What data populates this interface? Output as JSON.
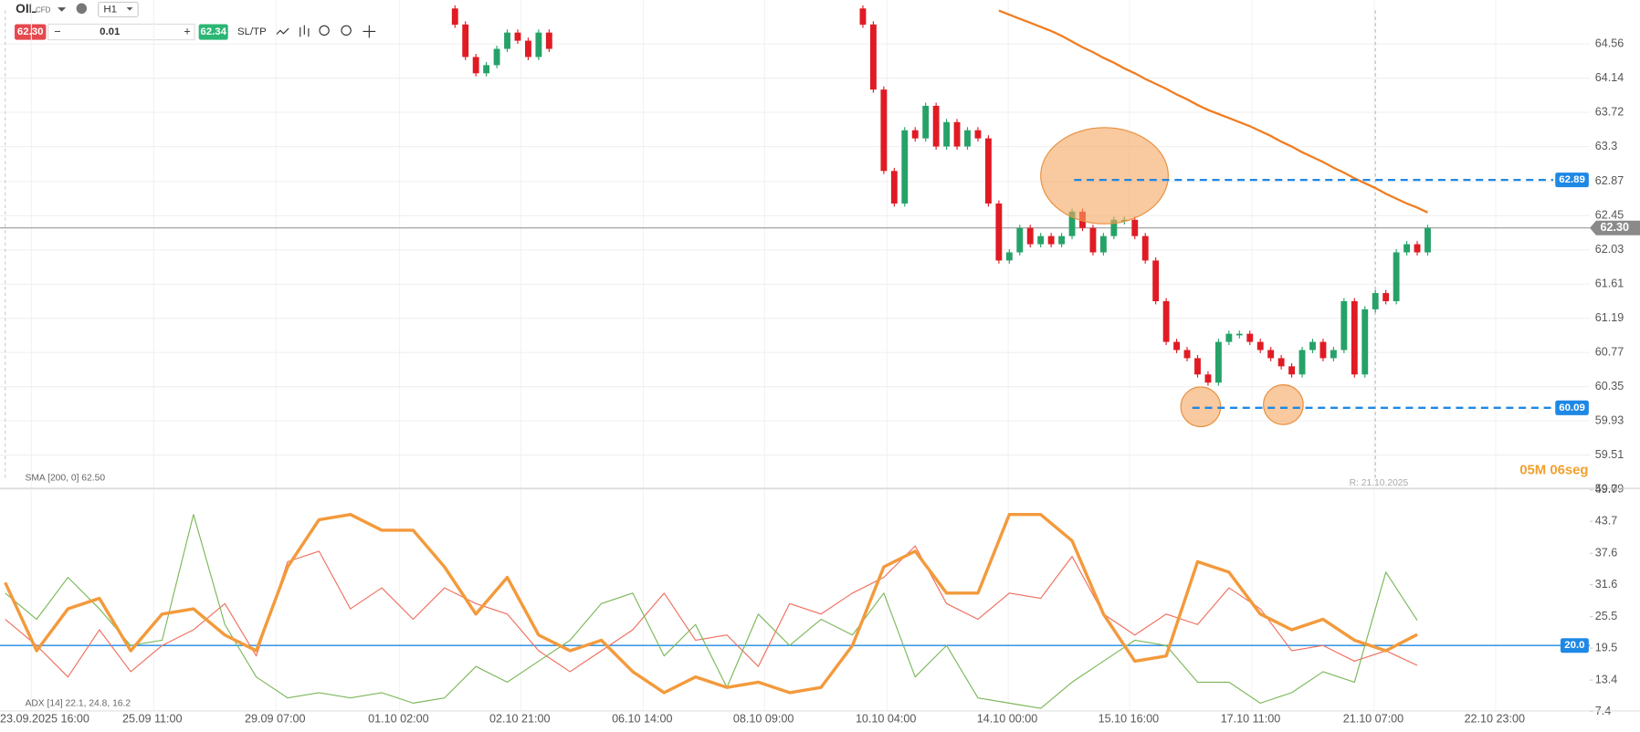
{
  "toolbar": {
    "symbol": "OIL",
    "instrument_type": "CFD",
    "timeframe": "H1",
    "bid": "62.30",
    "lot": "0.01",
    "ask": "62.34",
    "sltp": "SL/TP"
  },
  "time_axis": [
    "23.09.2025 16:00",
    "25.09 11:00",
    "29.09 07:00",
    "01.10 02:00",
    "02.10 21:00",
    "06.10 14:00",
    "08.10 09:00",
    "10.10 04:00",
    "14.10 00:00",
    "15.10 16:00",
    "17.10 11:00",
    "21.10 07:00",
    "22.10 23:00"
  ],
  "chart_data": [
    {
      "type": "candlestick",
      "up_color": "#26a269",
      "down_color": "#e01b24",
      "values": [
        65.0,
        64.8,
        64.4,
        64.2,
        64.3,
        64.5,
        64.7,
        64.6,
        64.4,
        64.7,
        64.5,
        null,
        null,
        null,
        null,
        null,
        null,
        null,
        null,
        null,
        null,
        null,
        null,
        null,
        null,
        null,
        null,
        null,
        null,
        null,
        null,
        null,
        null,
        null,
        null,
        null,
        null,
        null,
        null,
        65.0,
        64.8,
        64.0,
        63.0,
        62.6,
        63.5,
        63.4,
        63.8,
        63.3,
        63.6,
        63.3,
        63.5,
        63.4,
        62.6,
        61.9,
        62.0,
        62.3,
        62.1,
        62.2,
        62.1,
        62.2,
        62.5,
        62.3,
        62.0,
        62.2,
        62.4,
        62.4,
        62.2,
        61.9,
        61.4,
        60.9,
        60.8,
        60.7,
        60.5,
        60.4,
        60.9,
        61.0,
        61.0,
        60.9,
        60.8,
        60.7,
        60.6,
        60.5,
        60.8,
        60.9,
        60.7,
        60.8,
        61.4,
        60.5,
        61.3,
        61.5,
        61.4,
        62.0,
        62.1,
        62.0,
        62.3
      ],
      "overlays": [
        {
          "name": "SMA [200, 0] 62.50",
          "color": "#f07d22",
          "values": [
            null,
            null,
            null,
            null,
            null,
            null,
            null,
            null,
            null,
            null,
            null,
            null,
            null,
            null,
            null,
            null,
            null,
            null,
            null,
            null,
            null,
            null,
            null,
            null,
            null,
            null,
            null,
            null,
            null,
            null,
            null,
            null,
            null,
            null,
            null,
            null,
            null,
            null,
            null,
            null,
            null,
            null,
            null,
            null,
            null,
            null,
            null,
            null,
            null,
            null,
            null,
            null,
            null,
            64.97,
            64.92,
            64.87,
            64.82,
            64.77,
            64.72,
            64.66,
            64.59,
            64.52,
            64.46,
            64.39,
            64.33,
            64.26,
            64.2,
            64.13,
            64.07,
            64.01,
            63.94,
            63.88,
            63.81,
            63.75,
            63.7,
            63.65,
            63.6,
            63.55,
            63.49,
            63.43,
            63.36,
            63.3,
            63.23,
            63.17,
            63.11,
            63.04,
            62.98,
            62.91,
            62.85,
            62.79,
            62.72,
            62.66,
            62.6,
            62.55,
            62.49
          ]
        }
      ],
      "ylim": [
        59.114,
        65.099
      ],
      "yticks": [
        64.56,
        64.14,
        63.72,
        63.3,
        62.87,
        62.45,
        62.03,
        61.61,
        61.19,
        60.77,
        60.35,
        59.93,
        59.51,
        59.09
      ],
      "price_lines": [
        {
          "value": 62.89,
          "color": "#1e88e5"
        },
        {
          "value": 60.09,
          "color": "#1e88e5"
        }
      ],
      "current_price": {
        "value": 62.3,
        "label": "62.30"
      },
      "range_label": "R: 21.10.2025",
      "timer": "05M 06seg",
      "grid": true
    },
    {
      "type": "line",
      "legend": "ADX [14] 22.1, 24.8, 16.2",
      "series": [
        {
          "color": "#f39a3c",
          "values": [
            32,
            19,
            27,
            29,
            19,
            26,
            27,
            22,
            19,
            35,
            44,
            45,
            42,
            42,
            35,
            26,
            33,
            22,
            19,
            21,
            15,
            11,
            14,
            12,
            13,
            11,
            12,
            20,
            35,
            38,
            30,
            30,
            45,
            45,
            40,
            26,
            17,
            18,
            36,
            34,
            26,
            23,
            25,
            21,
            19,
            22.1
          ]
        },
        {
          "color": "#7cb85a",
          "values": [
            30,
            25,
            33,
            27,
            20,
            21,
            45,
            24,
            14,
            10,
            11,
            10,
            11,
            9,
            10,
            16,
            13,
            17,
            21,
            28,
            30,
            18,
            24,
            12,
            26,
            20,
            25,
            22,
            30,
            14,
            20,
            10,
            9,
            8,
            13,
            17,
            21,
            20,
            13,
            13,
            9,
            11,
            15,
            13,
            34,
            24.8
          ]
        },
        {
          "color": "#ef6f5e",
          "values": [
            25,
            20,
            14,
            23,
            15,
            20,
            23,
            28,
            18,
            36,
            38,
            27,
            31,
            25,
            31,
            28,
            26,
            19,
            15,
            19,
            23,
            30,
            21,
            22,
            16,
            28,
            26,
            30,
            33,
            39,
            28,
            25,
            30,
            29,
            37,
            26,
            22,
            26,
            24,
            31,
            27,
            19,
            20,
            17,
            19,
            16.2
          ]
        }
      ],
      "ylim": [
        7.5,
        49.8
      ],
      "yticks": [
        49.7,
        43.7,
        37.6,
        31.6,
        25.5,
        19.5,
        13.4,
        7.4
      ],
      "reference_line": {
        "value": 20,
        "label": "20.0",
        "color": "#1e88e5"
      }
    }
  ]
}
